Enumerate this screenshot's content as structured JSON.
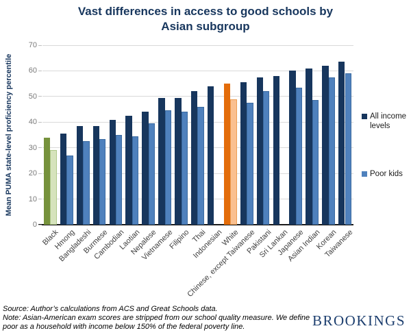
{
  "title": {
    "line1": "Vast differences in access to good schools by",
    "line2": "Asian subgroup"
  },
  "chart_data": {
    "type": "bar",
    "title": "Vast differences in access to good schools by Asian subgroup",
    "xlabel": "",
    "ylabel": "Mean PUMA state-level proficiency percentile",
    "ylim": [
      0,
      70
    ],
    "yticks": [
      0,
      10,
      20,
      30,
      40,
      50,
      60,
      70
    ],
    "grid": true,
    "legend_position": "right",
    "categories": [
      "Black",
      "Hmong",
      "Bangladeshi",
      "Burmese",
      "Cambodian",
      "Laotian",
      "Nepalese",
      "Vietnamese",
      "Filipino",
      "Thai",
      "Indonesian",
      "White",
      "Chinese, except Taiwanese",
      "Pakistani",
      "Sri Lankan",
      "Japanese",
      "Asian Indian",
      "Korean",
      "Taiwanese"
    ],
    "series": [
      {
        "name": "All income levels",
        "color": "#17365d",
        "values": [
          34,
          35.5,
          38.5,
          38.5,
          41,
          42.5,
          44,
          49.5,
          49.5,
          52,
          54,
          55,
          55.5,
          57.5,
          58,
          60,
          61,
          62,
          63.5
        ]
      },
      {
        "name": "Poor kids",
        "color": "#4f81bd",
        "border": "#3b6aa0",
        "values": [
          29,
          27,
          32.5,
          33.5,
          35,
          34.5,
          39.5,
          44.5,
          44,
          46,
          null,
          49,
          47.5,
          52,
          null,
          53.5,
          48.5,
          57.5,
          59
        ]
      }
    ],
    "category_color_overrides": {
      "Black": {
        "all_income": "#76923c",
        "poor": "#d6e3bc",
        "poor_border": "#aec88a"
      },
      "White": {
        "all_income": "#e36c0a",
        "poor": "#fac090",
        "poor_border": "#eb9e55"
      }
    }
  },
  "footer": {
    "line1": "Source: Author’s calculations from ACS and Great Schools data.",
    "line2": "Note: Asian-American exam scores are stripped from our school quality measure. We define",
    "line3": "poor as a household with income below 150% of the federal poverty line."
  },
  "branding": {
    "logo_text": "BROOKINGS"
  },
  "colors": {
    "title": "#17365d",
    "y_axis_title": "#17365d",
    "tick_label": "#7a7a7a",
    "x_label": "#404040",
    "gridline": "#d9d9d9",
    "axis_line": "#1a1a1a",
    "logo": "#1c3e6e"
  }
}
